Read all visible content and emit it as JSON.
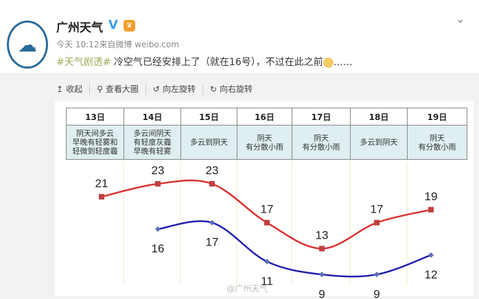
{
  "account": {
    "name": "广州天气",
    "verified_icon": "v-badge",
    "level_badge": "crown-icon",
    "avatar": "guangzhou-meteorological-logo"
  },
  "meta": "今天 10:12来自微博 weibo.com",
  "post": {
    "hashtag": "#天气剧透#",
    "text": " 冷空气已经安排上了（就在16号），不过在此之前",
    "ellipsis": "……"
  },
  "toolbar": [
    {
      "icon": "↥",
      "label": "收起"
    },
    {
      "icon": "⚲",
      "label": "查看大圖"
    },
    {
      "icon": "↺",
      "label": "向左旋转"
    },
    {
      "icon": "↻",
      "label": "向右旋转"
    }
  ],
  "watermark": "@广州天气",
  "colors": {
    "high": "#d93030",
    "low": "#2020b0",
    "accent": "#9cae5a"
  },
  "chart_data": {
    "type": "line",
    "categories": [
      "13日",
      "14日",
      "15日",
      "16日",
      "17日",
      "18日",
      "19日"
    ],
    "descriptions": [
      [
        "阴天间多云",
        "早晚有轻雾和",
        "轻微到轻度霾"
      ],
      [
        "多云间阴天",
        "有轻度灰霾",
        "早晚有轻雾"
      ],
      [
        "多云到阴天"
      ],
      [
        "阴天",
        "有分散小雨"
      ],
      [
        "阴天",
        "有分散小雨"
      ],
      [
        "多云到阴天"
      ],
      [
        "阴天",
        "有分散小雨"
      ]
    ],
    "series": [
      {
        "values": [
          21,
          23,
          23,
          17,
          13,
          17,
          19
        ]
      },
      {
        "values": [
          null,
          16,
          17,
          11,
          9,
          9,
          12
        ]
      }
    ]
  }
}
